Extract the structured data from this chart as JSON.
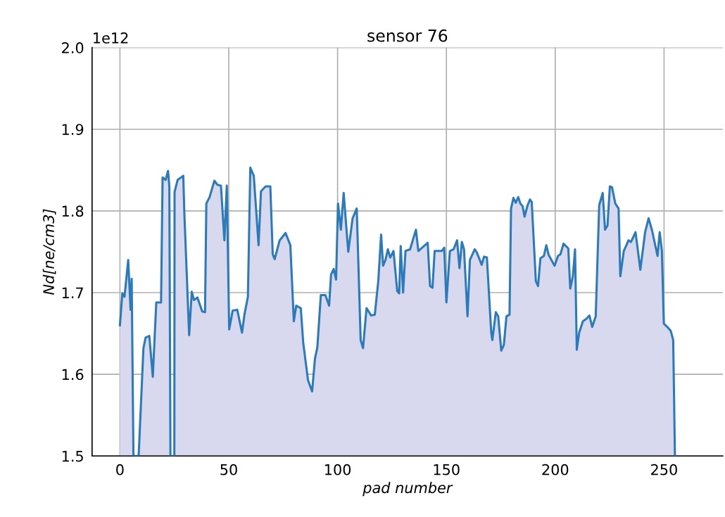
{
  "chart_data": {
    "type": "area",
    "title": "sensor 76",
    "xlabel": "pad number",
    "ylabel": "Nd[ne/cm3]",
    "annotations": [
      "1e12"
    ],
    "xlim": [
      -12.8,
      277
    ],
    "xticks": [
      0,
      50,
      100,
      150,
      200,
      250
    ],
    "ylim": [
      1.5,
      2.0
    ],
    "yticks": [
      1.5,
      1.6,
      1.7,
      1.8,
      1.9,
      {
        "value": 2.0,
        "label": "2.0"
      }
    ],
    "grid": true,
    "series": [
      {
        "color": "#2b7bba",
        "x": [
          0,
          1.1,
          2.1,
          3.8,
          4.9,
          5.4,
          6.2,
          8.6,
          10.8,
          11.8,
          13.5,
          15.1,
          16.7,
          18.9,
          19.6,
          21,
          22.1,
          22.7,
          23.2,
          25,
          25.1,
          26.5,
          29.1,
          29.6,
          31.8,
          33,
          34,
          35.6,
          37.8,
          39.1,
          39.7,
          41.2,
          43.4,
          44.8,
          46.4,
          48,
          49.1,
          50.2,
          51.8,
          53.9,
          56.1,
          57.2,
          58.8,
          59.9,
          61.5,
          63.7,
          64.8,
          66.9,
          69.1,
          70.2,
          71.1,
          73.4,
          76.1,
          78.3,
          79.9,
          81,
          83.1,
          84.2,
          86.4,
          88.3,
          89.6,
          90.7,
          92.3,
          94.4,
          96.1,
          97,
          98.2,
          99.3,
          100.2,
          101.5,
          102.8,
          104.9,
          106.9,
          108.8,
          110.6,
          111.7,
          113.3,
          115.4,
          117.1,
          118.7,
          120,
          120.9,
          122,
          123.1,
          124.2,
          125.7,
          127.4,
          128.3,
          129,
          130.1,
          131.2,
          133.3,
          136,
          137.1,
          141.4,
          142.5,
          143.6,
          144.6,
          147.9,
          149,
          150,
          151.6,
          153.3,
          154.9,
          156,
          157.1,
          158.1,
          159.7,
          160.8,
          163,
          164,
          166.2,
          167.3,
          168.6,
          170.6,
          171.1,
          172.7,
          173.8,
          175.2,
          176.4,
          177.6,
          179,
          179.7,
          180.8,
          181.9,
          183,
          184,
          185,
          185.9,
          187.3,
          188.4,
          189.2,
          191.1,
          192.1,
          193.2,
          194.8,
          195.9,
          197,
          199.7,
          201.3,
          202.4,
          203.8,
          206,
          206.9,
          208.1,
          209.1,
          209.9,
          211,
          212.7,
          214.3,
          215.7,
          217,
          218.6,
          220.2,
          221.8,
          222.9,
          224,
          225.1,
          226.1,
          227.6,
          229.1,
          229.9,
          231.5,
          233.7,
          234.8,
          236.9,
          239.1,
          241.3,
          242.9,
          244.5,
          247,
          248,
          249,
          249.9,
          251.5,
          253.1,
          254.2,
          255
        ],
        "values": [
          1.66,
          1.699,
          1.695,
          1.74,
          1.679,
          1.717,
          1.5,
          1.5,
          1.632,
          1.645,
          1.647,
          1.597,
          1.688,
          1.688,
          1.841,
          1.838,
          1.849,
          1.83,
          1.5,
          1.5,
          1.823,
          1.838,
          1.843,
          1.797,
          1.648,
          1.701,
          1.691,
          1.694,
          1.677,
          1.676,
          1.809,
          1.817,
          1.837,
          1.832,
          1.831,
          1.764,
          1.831,
          1.655,
          1.678,
          1.679,
          1.651,
          1.673,
          1.695,
          1.853,
          1.843,
          1.758,
          1.824,
          1.83,
          1.83,
          1.747,
          1.741,
          1.764,
          1.773,
          1.758,
          1.665,
          1.684,
          1.681,
          1.639,
          1.593,
          1.579,
          1.619,
          1.633,
          1.697,
          1.697,
          1.684,
          1.722,
          1.729,
          1.716,
          1.809,
          1.777,
          1.822,
          1.75,
          1.791,
          1.803,
          1.642,
          1.632,
          1.681,
          1.672,
          1.673,
          1.714,
          1.771,
          1.733,
          1.74,
          1.753,
          1.743,
          1.751,
          1.702,
          1.699,
          1.757,
          1.7,
          1.751,
          1.753,
          1.777,
          1.751,
          1.761,
          1.708,
          1.706,
          1.751,
          1.751,
          1.755,
          1.688,
          1.751,
          1.753,
          1.764,
          1.73,
          1.762,
          1.753,
          1.671,
          1.74,
          1.753,
          1.749,
          1.734,
          1.744,
          1.743,
          1.651,
          1.642,
          1.676,
          1.671,
          1.629,
          1.636,
          1.671,
          1.673,
          1.803,
          1.816,
          1.81,
          1.817,
          1.809,
          1.806,
          1.793,
          1.807,
          1.814,
          1.811,
          1.714,
          1.708,
          1.742,
          1.745,
          1.758,
          1.746,
          1.733,
          1.745,
          1.747,
          1.76,
          1.754,
          1.705,
          1.72,
          1.753,
          1.63,
          1.651,
          1.665,
          1.668,
          1.672,
          1.658,
          1.671,
          1.807,
          1.822,
          1.777,
          1.782,
          1.83,
          1.829,
          1.809,
          1.803,
          1.72,
          1.751,
          1.764,
          1.762,
          1.774,
          1.728,
          1.774,
          1.791,
          1.776,
          1.745,
          1.774,
          1.751,
          1.662,
          1.658,
          1.653,
          1.642,
          1.5
        ]
      }
    ]
  }
}
